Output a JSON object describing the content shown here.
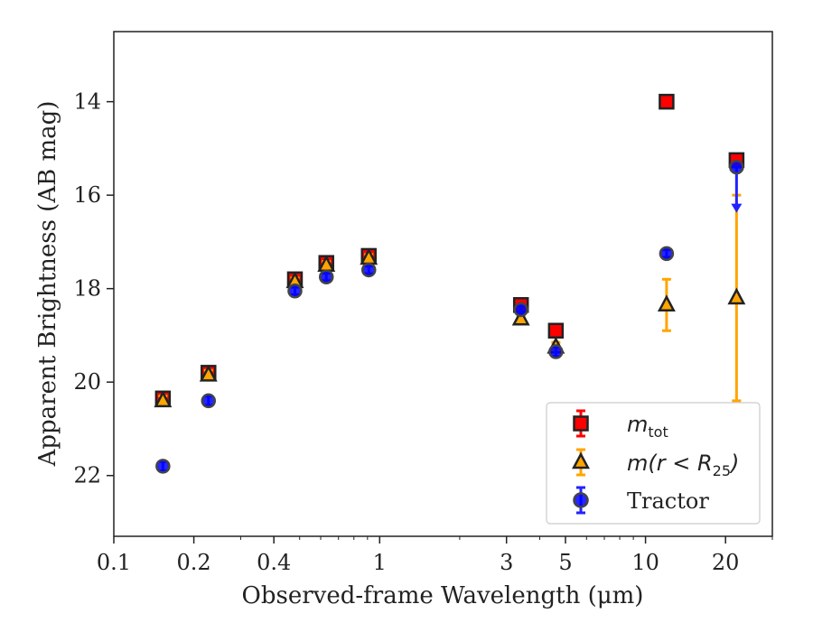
{
  "chart_data": {
    "type": "scatter",
    "xlabel": "Observed-frame Wavelength (μm)",
    "ylabel": "Apparent Brightness (AB mag)",
    "x_scale": "log",
    "xlim": [
      0.1,
      30
    ],
    "ylim": [
      23.3,
      12.5
    ],
    "y_inverted": true,
    "x_ticks": [
      {
        "value": 0.1,
        "label": "0.1"
      },
      {
        "value": 0.2,
        "label": "0.2"
      },
      {
        "value": 0.4,
        "label": "0.4"
      },
      {
        "value": 1,
        "label": "1"
      },
      {
        "value": 3,
        "label": "3"
      },
      {
        "value": 5,
        "label": "5"
      },
      {
        "value": 10,
        "label": "10"
      },
      {
        "value": 20,
        "label": "20"
      }
    ],
    "y_ticks": [
      {
        "value": 14,
        "label": "14"
      },
      {
        "value": 16,
        "label": "16"
      },
      {
        "value": 18,
        "label": "18"
      },
      {
        "value": 20,
        "label": "20"
      },
      {
        "value": 22,
        "label": "22"
      }
    ],
    "grid": false,
    "legend_position": "lower-right",
    "series": [
      {
        "name": "m_tot",
        "label_main": "m",
        "label_sub": "tot",
        "marker": "square",
        "color": "#ff0000",
        "edge": "#222222",
        "err_color": "#ff0000",
        "points": [
          {
            "x": 0.153,
            "y": 20.35,
            "err": 0.1
          },
          {
            "x": 0.227,
            "y": 19.8,
            "err": 0.1
          },
          {
            "x": 0.48,
            "y": 17.8,
            "err": 0.08
          },
          {
            "x": 0.63,
            "y": 17.45,
            "err": 0.08
          },
          {
            "x": 0.91,
            "y": 17.3,
            "err": 0.08
          },
          {
            "x": 3.4,
            "y": 18.35,
            "err": 0.08
          },
          {
            "x": 4.6,
            "y": 18.9,
            "err": 0.1
          },
          {
            "x": 12.0,
            "y": 14.0,
            "err": 0.08
          },
          {
            "x": 22.0,
            "y": 15.25,
            "err": 0.1
          }
        ]
      },
      {
        "name": "m(r < R25)",
        "label_main": "m(r < R",
        "label_sub": "25",
        "label_end": ")",
        "marker": "triangle",
        "color": "#ffa500",
        "edge": "#222222",
        "err_color": "#ffa500",
        "points": [
          {
            "x": 0.153,
            "y": 20.4,
            "err": 0.1
          },
          {
            "x": 0.227,
            "y": 19.85,
            "err": 0.1
          },
          {
            "x": 0.48,
            "y": 17.85,
            "err": 0.08
          },
          {
            "x": 0.63,
            "y": 17.5,
            "err": 0.08
          },
          {
            "x": 0.91,
            "y": 17.35,
            "err": 0.08
          },
          {
            "x": 3.4,
            "y": 18.65,
            "err": 0.08
          },
          {
            "x": 4.6,
            "y": 19.25,
            "err": 0.1
          },
          {
            "x": 12.0,
            "y": 18.35,
            "err": 0.55
          },
          {
            "x": 22.0,
            "y": 18.2,
            "err_low": 2.2,
            "err_high": 2.2
          }
        ]
      },
      {
        "name": "Tractor",
        "label_main": "Tractor",
        "marker": "circle",
        "color": "#0000ff",
        "edge": "#444444",
        "err_color": "#2222ff",
        "points": [
          {
            "x": 0.153,
            "y": 21.8,
            "err": 0.1
          },
          {
            "x": 0.227,
            "y": 20.4,
            "err": 0.1
          },
          {
            "x": 0.48,
            "y": 18.05,
            "err": 0.08
          },
          {
            "x": 0.63,
            "y": 17.75,
            "err": 0.08
          },
          {
            "x": 0.91,
            "y": 17.6,
            "err": 0.08
          },
          {
            "x": 3.4,
            "y": 18.45,
            "err": 0.08
          },
          {
            "x": 4.6,
            "y": 19.35,
            "err": 0.1
          },
          {
            "x": 12.0,
            "y": 17.25,
            "err": 0.08
          },
          {
            "x": 22.0,
            "y": 15.4,
            "upper_limit_to": 16.3
          }
        ]
      }
    ]
  }
}
